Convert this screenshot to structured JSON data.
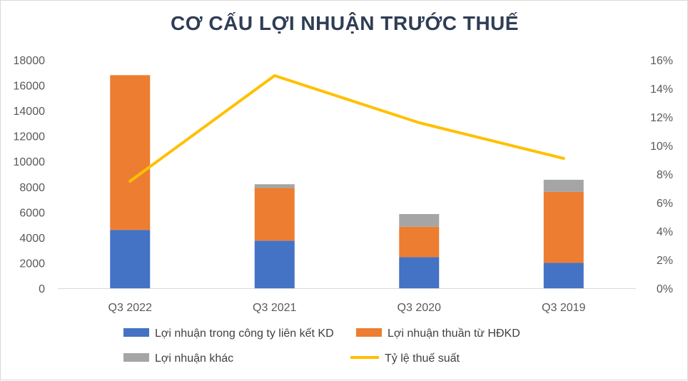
{
  "chart_data": {
    "type": "bar",
    "stacked": true,
    "title": "CƠ CẤU LỢI NHUẬN TRƯỚC THUẾ",
    "categories": [
      "Q3 2022",
      "Q3 2021",
      "Q3 2020",
      "Q3 2019"
    ],
    "series": [
      {
        "name": "Lợi nhuận trong công ty liên kết KD",
        "type": "bar",
        "axis": "left",
        "color": "#4472c4",
        "values": [
          4600,
          3750,
          2450,
          2000
        ]
      },
      {
        "name": "Lợi nhuận thuần từ HĐKD",
        "type": "bar",
        "axis": "left",
        "color": "#ed7d31",
        "values": [
          12200,
          4150,
          2400,
          5600
        ]
      },
      {
        "name": "Lợi nhuận khác",
        "type": "bar",
        "axis": "left",
        "color": "#a5a5a5",
        "values": [
          0,
          300,
          1000,
          950
        ]
      },
      {
        "name": "Tỷ lệ thuế suất",
        "type": "line",
        "axis": "right",
        "color": "#ffc000",
        "values": [
          0.075,
          0.149,
          0.116,
          0.091
        ]
      }
    ],
    "y_left": {
      "min": 0,
      "max": 18000,
      "step": 2000,
      "ticks": [
        "0",
        "2000",
        "4000",
        "6000",
        "8000",
        "10000",
        "12000",
        "14000",
        "16000",
        "18000"
      ]
    },
    "y_right": {
      "min": 0,
      "max": 0.16,
      "step": 0.02,
      "ticks": [
        "0%",
        "2%",
        "4%",
        "6%",
        "8%",
        "10%",
        "12%",
        "14%",
        "16%"
      ]
    },
    "grid": false,
    "legend": "bottom"
  }
}
